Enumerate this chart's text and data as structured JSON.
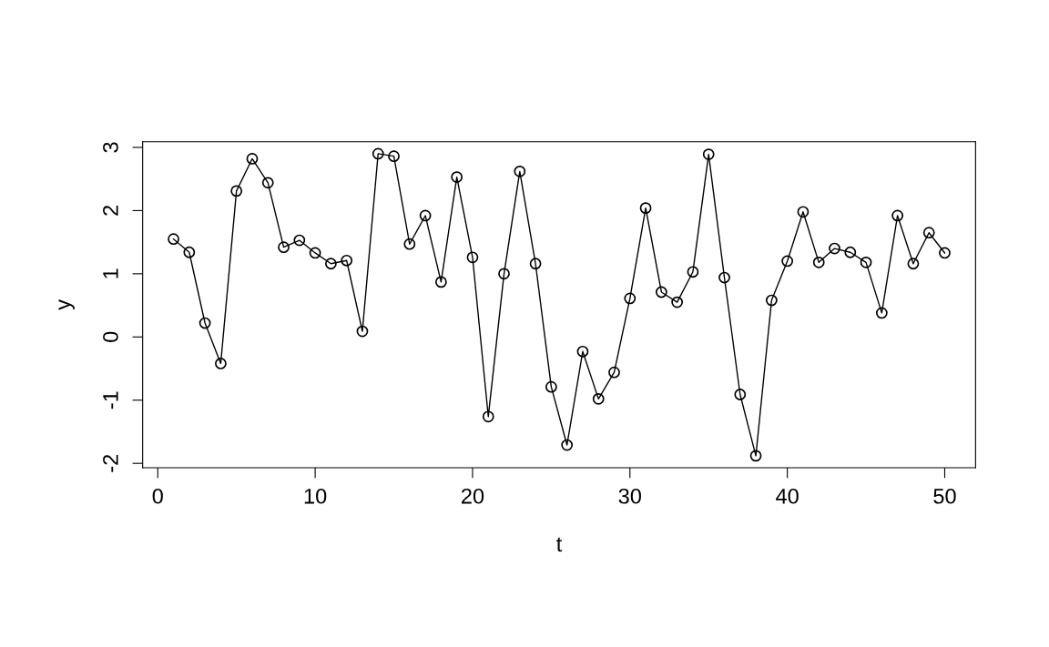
{
  "chart_data": {
    "type": "line",
    "xlabel": "t",
    "ylabel": "y",
    "x": [
      1,
      2,
      3,
      4,
      5,
      6,
      7,
      8,
      9,
      10,
      11,
      12,
      13,
      14,
      15,
      16,
      17,
      18,
      19,
      20,
      21,
      22,
      23,
      24,
      25,
      26,
      27,
      28,
      29,
      30,
      31,
      32,
      33,
      34,
      35,
      36,
      37,
      38,
      39,
      40,
      41,
      42,
      43,
      44,
      45,
      46,
      47,
      48,
      49,
      50
    ],
    "series": [
      {
        "color": "#000000",
        "values": [
          1.55,
          1.34,
          0.22,
          -0.42,
          2.31,
          2.82,
          2.44,
          1.42,
          1.53,
          1.33,
          1.16,
          1.21,
          0.09,
          2.9,
          2.86,
          1.47,
          1.92,
          0.87,
          2.53,
          1.26,
          -1.26,
          1.0,
          2.62,
          1.16,
          -0.79,
          -1.71,
          -0.23,
          -0.98,
          -0.56,
          0.61,
          2.04,
          0.71,
          0.55,
          1.03,
          2.89,
          0.94,
          -0.91,
          -1.88,
          0.58,
          1.2,
          1.98,
          1.18,
          1.4,
          1.34,
          1.18,
          0.38,
          1.92,
          1.16,
          1.65,
          1.33
        ]
      }
    ],
    "xlim": [
      -0.96,
      51.96
    ],
    "ylim": [
      -2.07,
      3.09
    ],
    "xticks": [
      0,
      10,
      20,
      30,
      40,
      50
    ],
    "yticks": [
      -2,
      -1,
      0,
      1,
      2,
      3
    ],
    "marker": "circle",
    "line_style": "solid",
    "grid": false,
    "legend": false
  }
}
